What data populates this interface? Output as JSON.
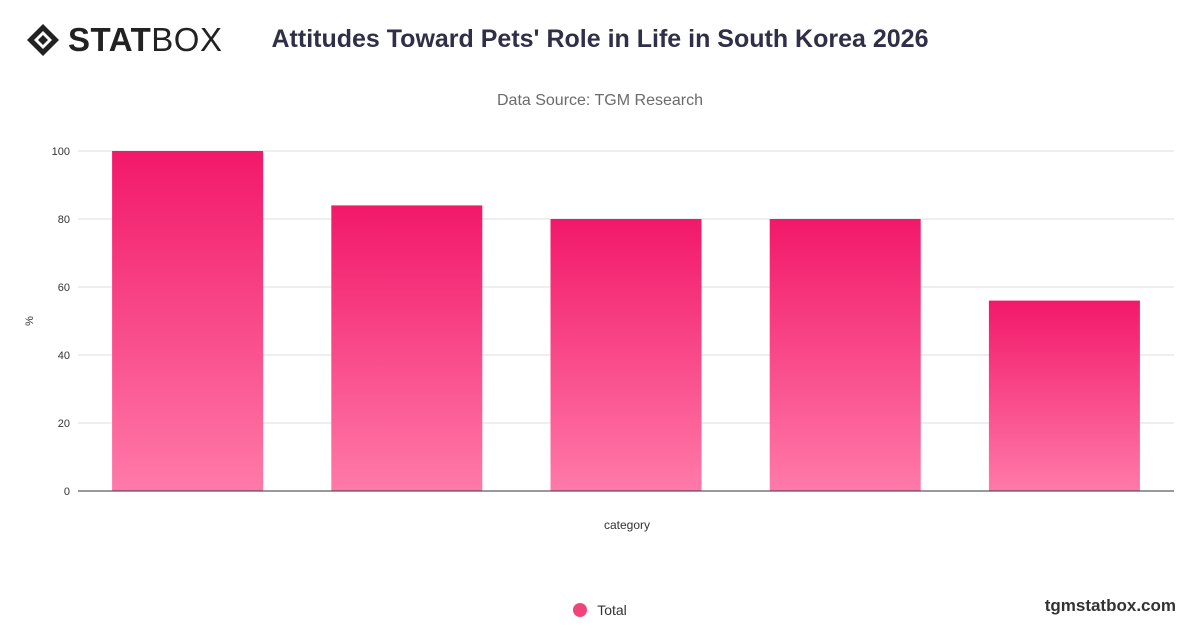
{
  "brand": {
    "logo_bold": "STAT",
    "logo_light": "BOX",
    "logo_icon": "diamond-logo-icon",
    "watermark": "tgmstatbox.com"
  },
  "header": {
    "title": "Attitudes Toward Pets' Role in Life in South Korea 2026",
    "subtitle": "Data Source: TGM Research"
  },
  "legend": {
    "items": [
      {
        "label": "Total",
        "color": "#f0457a"
      }
    ]
  },
  "colors": {
    "bar_top": "#f2186a",
    "bar_bottom": "#ff7aa8",
    "grid": "#dcdcdc",
    "axis": "#333333"
  },
  "chart_data": {
    "type": "bar",
    "categories": [
      "",
      "",
      "",
      "",
      ""
    ],
    "series": [
      {
        "name": "Total",
        "values": [
          100,
          84,
          80,
          80,
          56
        ]
      }
    ],
    "title": "Attitudes Toward Pets' Role in Life in South Korea 2026",
    "subtitle": "Data Source: TGM Research",
    "xlabel": "category",
    "ylabel": "%",
    "ylim": [
      0,
      100
    ],
    "yticks": [
      0,
      20,
      40,
      60,
      80,
      100
    ],
    "grid": true,
    "legend_position": "bottom"
  }
}
